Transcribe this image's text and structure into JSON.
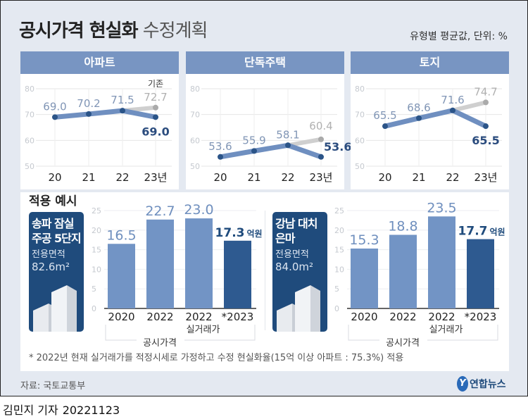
{
  "header": {
    "title_bold": "공시가격 현실화",
    "title_light": "수정계획",
    "unit_note": "유형별 평균값, 단위: %"
  },
  "chart_data": [
    {
      "type": "line",
      "title": "아파트",
      "x": [
        "20",
        "21",
        "22",
        "23년"
      ],
      "series": [
        {
          "values": [
            69.0,
            70.2,
            71.5,
            69.0
          ]
        },
        {
          "name": "기존",
          "x": [
            "22",
            "23년"
          ],
          "values": [
            71.5,
            72.7
          ]
        }
      ],
      "ylim": [
        50,
        80
      ],
      "yticks": [
        50,
        60,
        70,
        80
      ],
      "grid": true,
      "labels": [
        "69.0",
        "70.2",
        "71.5",
        "69.0"
      ],
      "existing_label": "72.7",
      "existing_name": "기존",
      "colors": {
        "line": "#6f8fc0",
        "point": "#2b5488",
        "existing": "#cfcfcf"
      }
    },
    {
      "type": "line",
      "title": "단독주택",
      "x": [
        "20",
        "21",
        "22",
        "23년"
      ],
      "series": [
        {
          "values": [
            53.6,
            55.9,
            58.1,
            53.6
          ]
        },
        {
          "x": [
            "22",
            "23년"
          ],
          "values": [
            58.1,
            60.4
          ]
        }
      ],
      "ylim": [
        50,
        80
      ],
      "yticks": [
        50,
        60,
        70,
        80
      ],
      "grid": true,
      "labels": [
        "53.6",
        "55.9",
        "58.1",
        "53.6"
      ],
      "existing_label": "60.4",
      "existing_name": "",
      "colors": {
        "line": "#6f8fc0",
        "point": "#2b5488",
        "existing": "#cfcfcf"
      }
    },
    {
      "type": "line",
      "title": "토지",
      "x": [
        "20",
        "21",
        "22",
        "23년"
      ],
      "series": [
        {
          "values": [
            65.5,
            68.6,
            71.6,
            65.5
          ]
        },
        {
          "x": [
            "22",
            "23년"
          ],
          "values": [
            71.6,
            74.7
          ]
        }
      ],
      "ylim": [
        50,
        80
      ],
      "yticks": [
        50,
        60,
        70,
        80
      ],
      "grid": true,
      "labels": [
        "65.5",
        "68.6",
        "71.6",
        "65.5"
      ],
      "existing_label": "74.7",
      "existing_name": "",
      "colors": {
        "line": "#6f8fc0",
        "point": "#2b5488",
        "existing": "#cfcfcf"
      }
    },
    {
      "type": "bar",
      "categories": [
        "2020",
        "2022",
        "2022",
        "*2023"
      ],
      "values": [
        16.5,
        22.7,
        23.0,
        17.3
      ],
      "labels": [
        "16.5",
        "22.7",
        "23.0",
        "17.3"
      ],
      "unit": "억원",
      "ylim": [
        0,
        25
      ],
      "yticks": [
        0,
        5,
        10,
        15,
        20,
        25
      ],
      "group_label": "공시가격",
      "sub_label": "실거래가",
      "colors": {
        "bar": "#7294c5",
        "last": "#2e5a90"
      }
    },
    {
      "type": "bar",
      "categories": [
        "2020",
        "2022",
        "2022",
        "*2023"
      ],
      "values": [
        15.3,
        18.8,
        23.5,
        17.7
      ],
      "labels": [
        "15.3",
        "18.8",
        "23.5",
        "17.7"
      ],
      "unit": "억원",
      "ylim": [
        0,
        25
      ],
      "yticks": [
        0,
        5,
        10,
        15,
        20,
        25
      ],
      "group_label": "공시가격",
      "sub_label": "실거래가",
      "colors": {
        "bar": "#7294c5",
        "last": "#2e5a90"
      }
    }
  ],
  "examples": {
    "section_title": "적용 예시",
    "cards": [
      {
        "name1": "송파 잠실",
        "name2": "주공 5단지",
        "area_label": "전용면적",
        "area": "82.6m²"
      },
      {
        "name1": "강남 대치",
        "name2": "은마",
        "area_label": "전용면적",
        "area": "84.0m²"
      }
    ]
  },
  "footnote": "* 2022년 현재 실거래가를 적정시세로 가정하고 수정 현실화율(15억 이상 아파트 : 75.3%) 적용",
  "source": "자료: 국토교통부",
  "logo": "연합뉴스",
  "byline": {
    "reporter": "김민지 기자",
    "date": "20221123"
  }
}
